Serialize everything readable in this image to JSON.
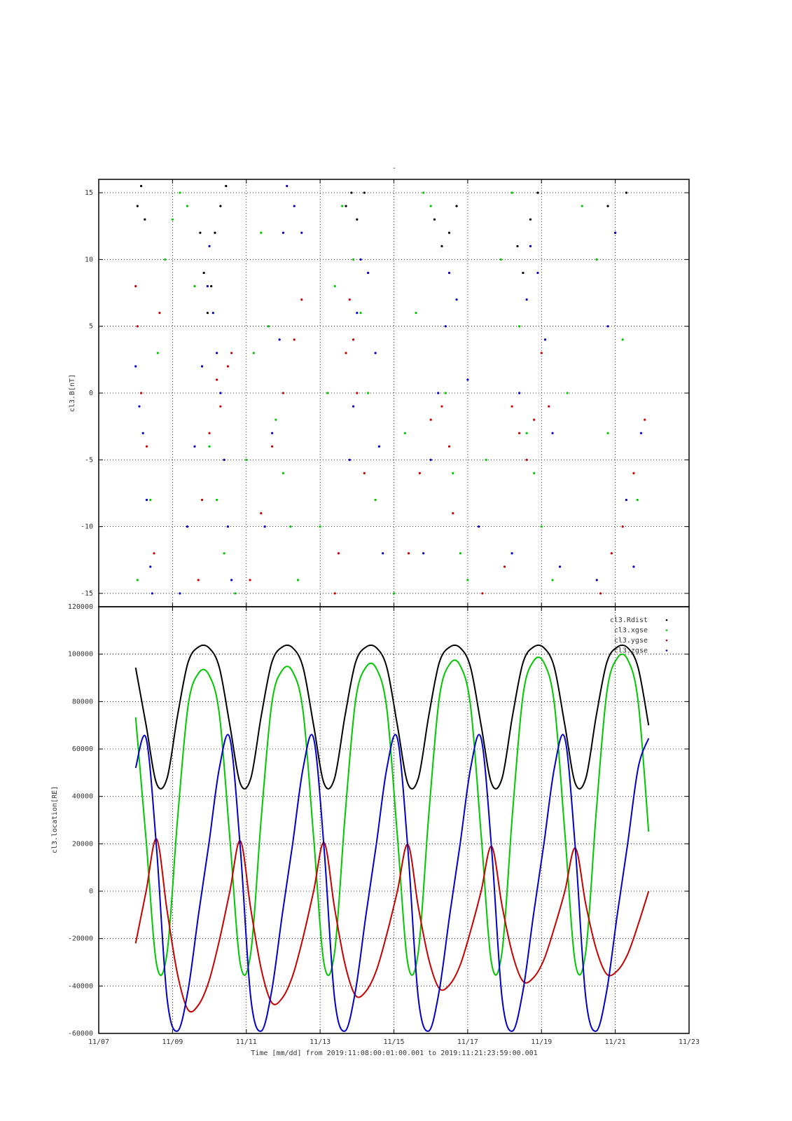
{
  "chart_data": [
    {
      "type": "scatter",
      "title": "-",
      "y_label": "cl3.B[nT]",
      "xlim": [
        7,
        23
      ],
      "xticks": [
        7,
        9,
        11,
        13,
        15,
        17,
        19,
        21,
        23
      ],
      "ylim": [
        -16,
        16
      ],
      "yticks": [
        -15,
        -10,
        -5,
        0,
        5,
        10,
        15
      ],
      "grid": true,
      "series": [
        {
          "color": "#000000",
          "x": [
            8.05,
            8.15,
            8.25,
            9.75,
            9.85,
            9.95,
            10.05,
            10.15,
            10.3,
            10.45,
            13.7,
            13.85,
            14.0,
            14.2,
            16.1,
            16.3,
            16.5,
            16.7,
            18.35,
            18.5,
            18.7,
            18.9,
            20.8,
            21.0,
            21.3
          ],
          "values": [
            14,
            15.5,
            13,
            12,
            9,
            6,
            8,
            12,
            14,
            15.5,
            14,
            15,
            13,
            15,
            13,
            11,
            12,
            14,
            11,
            9,
            13,
            15,
            14,
            12,
            15
          ]
        },
        {
          "color": "#00c800",
          "x": [
            8.05,
            8.4,
            8.6,
            8.8,
            9.0,
            9.2,
            9.4,
            9.6,
            9.8,
            10.0,
            10.2,
            10.4,
            10.7,
            11.0,
            11.2,
            11.4,
            11.6,
            11.8,
            12.0,
            12.2,
            12.4,
            13.0,
            13.2,
            13.4,
            13.6,
            13.9,
            14.1,
            14.3,
            14.5,
            15.0,
            15.3,
            15.6,
            15.8,
            16.0,
            16.4,
            16.6,
            16.8,
            17.0,
            17.5,
            17.9,
            18.2,
            18.4,
            18.6,
            18.8,
            19.0,
            19.3,
            19.7,
            20.1,
            20.5,
            20.8,
            21.2,
            21.6
          ],
          "values": [
            -14,
            -8,
            3,
            10,
            13,
            15,
            14,
            8,
            2,
            -4,
            -8,
            -12,
            -15,
            -5,
            3,
            12,
            5,
            -2,
            -6,
            -10,
            -14,
            -10,
            0,
            8,
            14,
            10,
            6,
            0,
            -8,
            -15,
            -3,
            6,
            15,
            14,
            0,
            -6,
            -12,
            -14,
            -5,
            10,
            15,
            5,
            -3,
            -6,
            -10,
            -14,
            0,
            14,
            10,
            -3,
            4,
            -8
          ]
        },
        {
          "color": "#0000c8",
          "x": [
            8.0,
            8.1,
            8.2,
            8.3,
            8.4,
            8.45,
            9.2,
            9.4,
            9.6,
            9.8,
            9.95,
            10.0,
            10.1,
            10.2,
            10.3,
            10.4,
            10.5,
            10.6,
            11.5,
            11.7,
            11.9,
            12.0,
            12.1,
            12.3,
            12.5,
            13.8,
            13.9,
            14.0,
            14.1,
            14.3,
            14.5,
            14.6,
            14.7,
            15.8,
            16.0,
            16.2,
            16.4,
            16.5,
            16.7,
            17.0,
            17.3,
            18.2,
            18.4,
            18.6,
            18.7,
            18.9,
            19.1,
            19.3,
            19.5,
            20.5,
            20.8,
            21.0,
            21.3,
            21.5,
            21.7
          ],
          "values": [
            2,
            -1,
            -3,
            -8,
            -13,
            -15,
            -15,
            -10,
            -4,
            2,
            8,
            11,
            6,
            3,
            0,
            -5,
            -10,
            -14,
            -10,
            -3,
            4,
            12,
            15.5,
            14,
            12,
            -5,
            -1,
            6,
            10,
            9,
            3,
            -4,
            -12,
            -12,
            -5,
            0,
            5,
            9,
            7,
            1,
            -10,
            -12,
            0,
            7,
            11,
            9,
            4,
            -3,
            -13,
            -14,
            5,
            12,
            -8,
            -13,
            -3
          ]
        },
        {
          "color": "#c80000",
          "x": [
            8.0,
            8.05,
            8.15,
            8.3,
            8.5,
            8.65,
            9.7,
            9.8,
            10.0,
            10.2,
            10.3,
            10.5,
            10.6,
            11.1,
            11.4,
            11.7,
            12.0,
            12.3,
            12.5,
            13.4,
            13.5,
            13.7,
            13.8,
            13.9,
            14.0,
            14.2,
            15.4,
            15.7,
            16.0,
            16.3,
            16.5,
            16.6,
            17.4,
            18.0,
            18.2,
            18.4,
            18.6,
            18.8,
            19.0,
            19.2,
            20.6,
            20.9,
            21.2,
            21.5,
            21.8
          ],
          "values": [
            8,
            5,
            0,
            -4,
            -12,
            6,
            -14,
            -8,
            -3,
            1,
            -1,
            2,
            3,
            -14,
            -9,
            -4,
            0,
            4,
            7,
            -15,
            -12,
            3,
            7,
            4,
            0,
            -6,
            -12,
            -6,
            -2,
            -1,
            -4,
            -9,
            -15,
            -13,
            -1,
            -3,
            -5,
            -2,
            3,
            -1,
            -15,
            -12,
            -10,
            -6,
            -2
          ]
        }
      ]
    },
    {
      "type": "line",
      "y_label": "cl3.location[RE]",
      "x_label": "Time [mm/dd]  from 2019:11:08:00:01:00.001  to  2019:11:21:23:59:00.001",
      "xlim": [
        7,
        23
      ],
      "xticks": [
        {
          "value": 7,
          "label": "11/07"
        },
        {
          "value": 9,
          "label": "11/09"
        },
        {
          "value": 11,
          "label": "11/11"
        },
        {
          "value": 13,
          "label": "11/13"
        },
        {
          "value": 15,
          "label": "11/15"
        },
        {
          "value": 17,
          "label": "11/17"
        },
        {
          "value": 19,
          "label": "11/19"
        },
        {
          "value": 21,
          "label": "11/21"
        },
        {
          "value": 23,
          "label": "11/23"
        }
      ],
      "ylim": [
        -60000,
        120000
      ],
      "yticks": [
        -60000,
        -40000,
        -20000,
        0,
        20000,
        40000,
        60000,
        80000,
        100000,
        120000
      ],
      "grid": true,
      "legend": "upper right",
      "x": [
        8.0,
        8.284,
        8.568,
        8.851,
        9.135,
        9.419,
        9.703,
        9.986,
        10.27,
        10.554,
        10.838,
        11.121,
        11.405,
        11.689,
        11.973,
        12.256,
        12.54,
        12.824,
        13.108,
        13.391,
        13.675,
        13.959,
        14.243,
        14.526,
        14.81,
        15.094,
        15.378,
        15.661,
        15.945,
        16.229,
        16.513,
        16.796,
        17.08,
        17.364,
        17.648,
        17.931,
        18.215,
        18.499,
        18.783,
        19.066,
        19.35,
        19.634,
        19.918,
        20.201,
        20.485,
        20.769,
        21.053,
        21.336,
        21.62,
        21.904
      ],
      "series": [
        {
          "name": "cl3.Rdist",
          "color": "#000000",
          "values": [
            94300,
            70000,
            45400,
            47600,
            74000,
            96400,
            103000,
            102700,
            94300,
            70000,
            45400,
            47600,
            74000,
            96400,
            103000,
            102700,
            94300,
            70000,
            45400,
            47600,
            74000,
            96400,
            103000,
            102700,
            94300,
            70000,
            45400,
            47600,
            74000,
            96400,
            103000,
            102700,
            94300,
            70000,
            45400,
            47600,
            74000,
            96400,
            103000,
            102700,
            94300,
            70000,
            45400,
            47600,
            74000,
            96400,
            103000,
            102700,
            94300,
            70000
          ]
        },
        {
          "name": "cl3.xgse",
          "color": "#00c800",
          "values": [
            73400,
            21600,
            -30800,
            -26100,
            30200,
            77900,
            91900,
            91300,
            74500,
            22200,
            -30700,
            -26000,
            30900,
            79000,
            93200,
            92600,
            75600,
            22800,
            -30700,
            -25900,
            31600,
            80200,
            94500,
            93900,
            76700,
            23400,
            -30600,
            -25700,
            32200,
            81300,
            95800,
            95200,
            77800,
            23900,
            -30500,
            -25600,
            32900,
            82500,
            97000,
            96400,
            78900,
            24500,
            -30400,
            -25500,
            33600,
            83600,
            98300,
            97700,
            80000,
            25100
          ]
        },
        {
          "name": "cl3.ygse",
          "color": "#c80000",
          "values": [
            -22000,
            0,
            22000,
            -8000,
            -35000,
            -50000,
            -48000,
            -38000,
            -20700,
            0,
            21200,
            -7500,
            -32900,
            -47000,
            -45100,
            -35700,
            -19400,
            0,
            20500,
            -7000,
            -30800,
            -44000,
            -42200,
            -33400,
            -18000,
            0,
            19700,
            -6600,
            -28700,
            -41000,
            -39400,
            -31200,
            -16700,
            0,
            18900,
            -6100,
            -26600,
            -38000,
            -36500,
            -28900,
            -15400,
            0,
            18200,
            -5600,
            -24500,
            -35000,
            -33600,
            -26600,
            -14100,
            0
          ]
        },
        {
          "name": "cl3.zgse",
          "color": "#0000c8",
          "values": [
            52000,
            64500,
            18000,
            -45000,
            -59000,
            -42000,
            -10000,
            20000,
            52000,
            64500,
            18000,
            -45000,
            -59000,
            -42000,
            -10000,
            20000,
            52000,
            64500,
            18000,
            -45000,
            -59000,
            -42000,
            -10000,
            20000,
            52000,
            64500,
            18000,
            -45000,
            -59000,
            -42000,
            -10000,
            20000,
            52000,
            64500,
            18000,
            -45000,
            -59000,
            -42000,
            -10000,
            20000,
            52000,
            64500,
            18000,
            -45000,
            -59000,
            -42000,
            -10000,
            20000,
            52000,
            64500
          ]
        }
      ]
    }
  ]
}
